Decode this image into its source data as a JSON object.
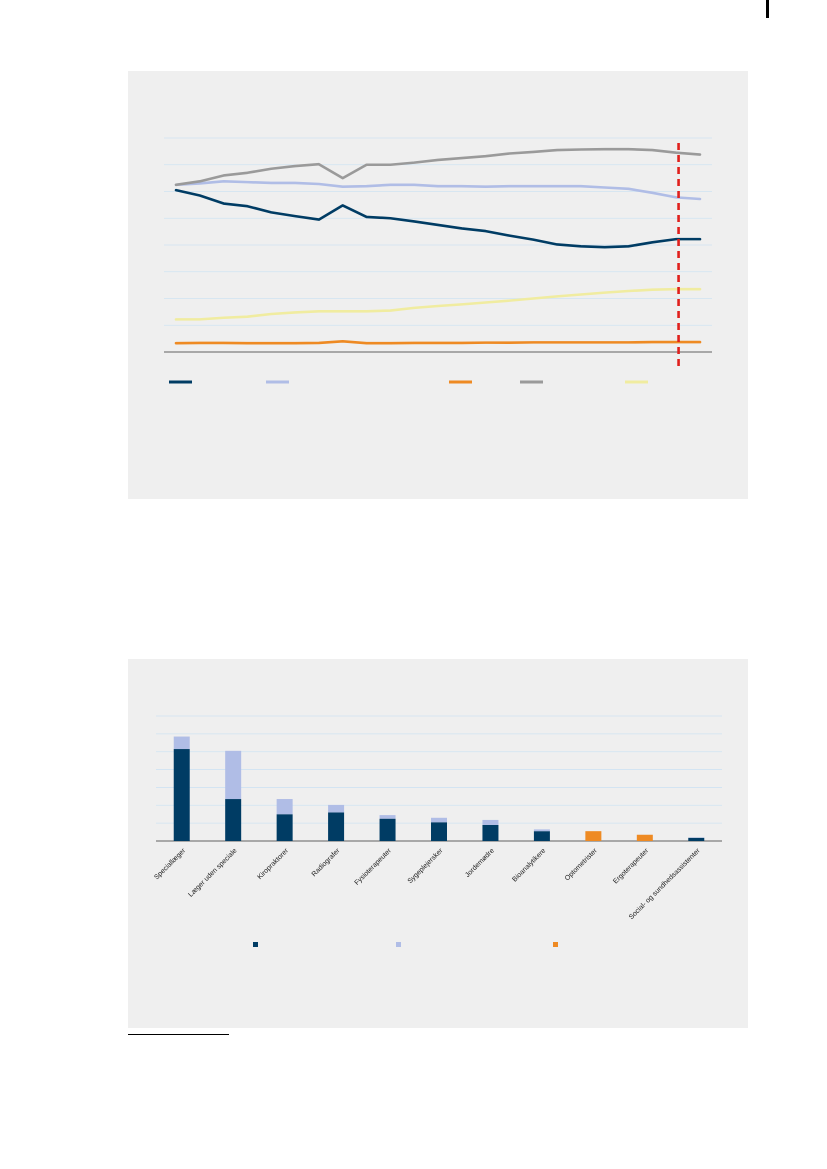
{
  "colors": {
    "panel_bg": "#efefef",
    "grid": "#cfe3f2",
    "axis": "#333333",
    "navy": "#003c64",
    "light_blue": "#b0bde6",
    "orange": "#ee8a23",
    "gray": "#9a9a9a",
    "pale_yellow": "#f0eca0",
    "red_marker": "#e0201c"
  },
  "chart_data": [
    {
      "type": "line",
      "title": "",
      "xlabel": "",
      "ylabel": "",
      "ylim": [
        0,
        8
      ],
      "grid": true,
      "legend_placement": "bottom",
      "x": [
        1,
        2,
        3,
        4,
        5,
        6,
        7,
        8,
        9,
        10,
        11,
        12,
        13,
        14,
        15,
        16,
        17,
        18,
        19,
        20,
        21,
        22,
        23
      ],
      "forecast_marker_x": 22.1,
      "series": [
        {
          "color": "#003c64",
          "values": [
            6.05,
            5.85,
            5.55,
            5.45,
            5.22,
            5.08,
            4.95,
            5.48,
            5.05,
            5.0,
            4.88,
            4.75,
            4.62,
            4.52,
            4.35,
            4.2,
            4.02,
            3.95,
            3.92,
            3.95,
            4.1,
            4.22,
            4.22
          ]
        },
        {
          "color": "#b0bde6",
          "values": [
            6.25,
            6.3,
            6.38,
            6.35,
            6.32,
            6.32,
            6.28,
            6.18,
            6.2,
            6.25,
            6.25,
            6.2,
            6.2,
            6.18,
            6.2,
            6.2,
            6.2,
            6.2,
            6.15,
            6.1,
            5.95,
            5.78,
            5.72
          ]
        },
        {
          "color": "#ee8a23",
          "values": [
            0.33,
            0.34,
            0.34,
            0.33,
            0.33,
            0.33,
            0.34,
            0.4,
            0.33,
            0.33,
            0.34,
            0.34,
            0.34,
            0.35,
            0.35,
            0.36,
            0.36,
            0.36,
            0.36,
            0.36,
            0.37,
            0.37,
            0.37
          ]
        },
        {
          "color": "#9a9a9a",
          "values": [
            6.25,
            6.38,
            6.6,
            6.7,
            6.85,
            6.95,
            7.02,
            6.5,
            7.0,
            7.0,
            7.08,
            7.18,
            7.25,
            7.32,
            7.42,
            7.48,
            7.55,
            7.57,
            7.58,
            7.58,
            7.55,
            7.45,
            7.38
          ]
        },
        {
          "color": "#f0eca0",
          "values": [
            1.22,
            1.22,
            1.28,
            1.32,
            1.42,
            1.48,
            1.52,
            1.52,
            1.52,
            1.55,
            1.65,
            1.72,
            1.78,
            1.85,
            1.92,
            2.0,
            2.08,
            2.15,
            2.22,
            2.28,
            2.33,
            2.35,
            2.35
          ]
        }
      ]
    },
    {
      "type": "bar",
      "stacked": true,
      "title": "",
      "xlabel": "",
      "ylabel": "",
      "ylim": [
        0,
        7
      ],
      "grid": true,
      "legend_placement": "bottom",
      "categories": [
        "Speciallæger",
        "Læger uden speciale",
        "Kiropraktorer",
        "Radiografer",
        "Fysioterapeuter",
        "Sygeplejersker",
        "Jordemødre",
        "Bioanalytikere",
        "Optometrister",
        "Ergoterapeuter",
        "Social- og sundhedsassistenter"
      ],
      "series": [
        {
          "color": "#003c64",
          "values": [
            5.15,
            2.35,
            1.5,
            1.6,
            1.25,
            1.05,
            0.9,
            0.55,
            0,
            0,
            0.18
          ]
        },
        {
          "color": "#b0bde6",
          "values": [
            0.7,
            2.7,
            0.85,
            0.42,
            0.2,
            0.25,
            0.28,
            0.1,
            0,
            0,
            0.02
          ]
        },
        {
          "color": "#ee8a23",
          "values": [
            0,
            0,
            0,
            0,
            0,
            0,
            0,
            0,
            0.55,
            0.35,
            0
          ]
        }
      ]
    }
  ]
}
